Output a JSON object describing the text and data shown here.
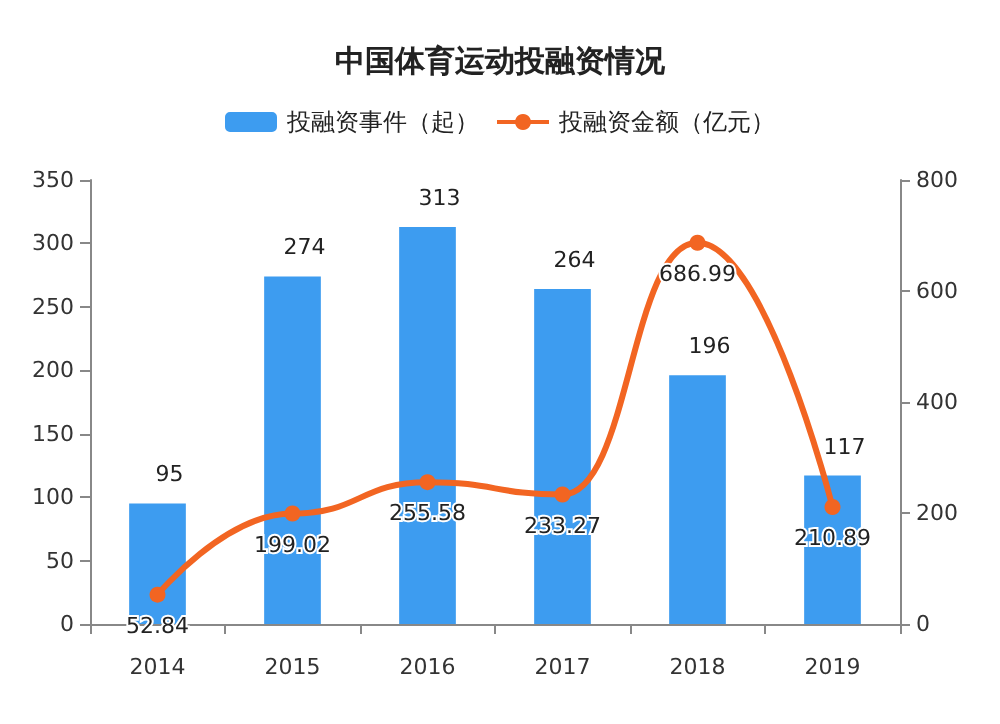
{
  "chart_data": {
    "type": "bar",
    "title": "中国体育运动投融资情况",
    "categories": [
      "2014",
      "2015",
      "2016",
      "2017",
      "2018",
      "2019"
    ],
    "series": [
      {
        "name": "投融资事件（起）",
        "color": "#3d9cf0",
        "values": [
          95,
          274,
          313,
          264,
          196,
          117
        ]
      },
      {
        "name": "投融资金额（亿元）",
        "type": "line",
        "axis": "y2",
        "color": "#f26522",
        "marker": "circle",
        "values": [
          52.84,
          199.02,
          255.58,
          233.27,
          686.99,
          210.89
        ]
      }
    ],
    "ylim": [
      0,
      350
    ],
    "yticks": [
      0,
      50,
      100,
      150,
      200,
      250,
      300,
      350
    ],
    "y2lim": [
      0,
      800
    ],
    "y2ticks": [
      0,
      200,
      400,
      600,
      800
    ],
    "data_labels": true,
    "grid": false,
    "legend": "top"
  }
}
